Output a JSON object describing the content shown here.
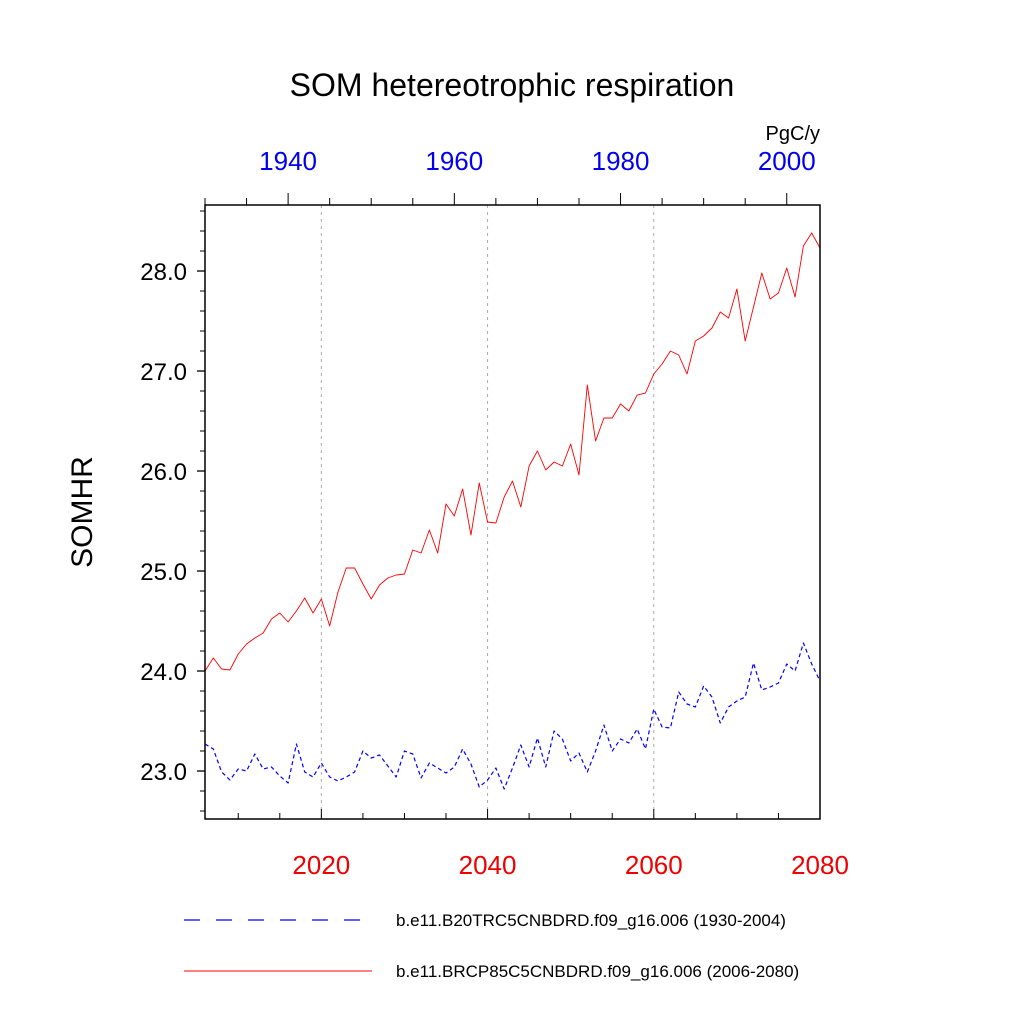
{
  "chart_data": {
    "type": "line",
    "title": "SOM hetereotrophic respiration",
    "ylabel": "SOMHR",
    "units": "PgC/y",
    "ylim": [
      22.52,
      28.66
    ],
    "y_ticks": [
      "23.0",
      "24.0",
      "25.0",
      "26.0",
      "27.0",
      "28.0"
    ],
    "bottom_x_ticks": [
      "2020",
      "2040",
      "2060",
      "2080"
    ],
    "top_x_ticks": [
      "1940",
      "1960",
      "1980",
      "2000"
    ],
    "bottom_xlim": [
      2006,
      2080
    ],
    "top_xlim": [
      1930,
      2004
    ],
    "grid": "vertical dotted at bottom-axis major ticks",
    "legend_position": "bottom",
    "colors": {
      "bottom_axis": "#ee0000",
      "top_axis": "#0000ee",
      "series_rcp": "#ff0000",
      "series_20c": "#0000ff"
    },
    "series": [
      {
        "name": "b.e11.B20TRC5CNBDRD.f09_g16.006 (1930-2004)",
        "axis": "top",
        "style": "dashed",
        "color": "#0000ff",
        "x_start": 1930,
        "values": [
          23.27,
          23.22,
          22.99,
          22.91,
          23.02,
          23.0,
          23.17,
          23.02,
          23.04,
          22.95,
          22.88,
          23.27,
          22.99,
          22.94,
          23.08,
          22.94,
          22.9,
          22.94,
          22.99,
          23.2,
          23.13,
          23.16,
          23.05,
          22.94,
          23.2,
          23.17,
          22.93,
          23.08,
          23.03,
          22.98,
          23.04,
          23.22,
          23.07,
          22.84,
          22.91,
          23.03,
          22.82,
          23.03,
          23.26,
          23.04,
          23.33,
          23.04,
          23.4,
          23.32,
          23.1,
          23.18,
          22.99,
          23.2,
          23.46,
          23.2,
          23.32,
          23.28,
          23.42,
          23.22,
          23.62,
          23.44,
          23.43,
          23.79,
          23.67,
          23.64,
          23.85,
          23.74,
          23.48,
          23.64,
          23.7,
          23.74,
          24.08,
          23.81,
          23.84,
          23.88,
          24.07,
          24.0,
          24.28,
          24.07,
          23.9
        ]
      },
      {
        "name": "b.e11.BRCP85C5CNBDRD.f09_g16.006 (2006-2080)",
        "axis": "bottom",
        "style": "solid",
        "color": "#ff0000",
        "x_start": 2006,
        "values": [
          24.0,
          24.13,
          24.02,
          24.01,
          24.17,
          24.27,
          24.33,
          24.38,
          24.52,
          24.58,
          24.49,
          24.6,
          24.73,
          24.58,
          24.72,
          24.45,
          24.79,
          25.03,
          25.03,
          24.87,
          24.72,
          24.86,
          24.93,
          24.96,
          24.97,
          25.21,
          25.18,
          25.41,
          25.18,
          25.67,
          25.55,
          25.82,
          25.36,
          25.88,
          25.49,
          25.48,
          25.74,
          25.9,
          25.64,
          26.05,
          26.2,
          26.01,
          26.09,
          26.05,
          26.27,
          25.96,
          26.86,
          26.3,
          26.53,
          26.53,
          26.67,
          26.6,
          26.76,
          26.78,
          26.97,
          27.07,
          27.2,
          27.16,
          26.97,
          27.3,
          27.35,
          27.43,
          27.59,
          27.53,
          27.82,
          27.3,
          27.64,
          27.98,
          27.72,
          27.78,
          28.03,
          27.74,
          28.25,
          28.38,
          28.23
        ]
      }
    ]
  }
}
